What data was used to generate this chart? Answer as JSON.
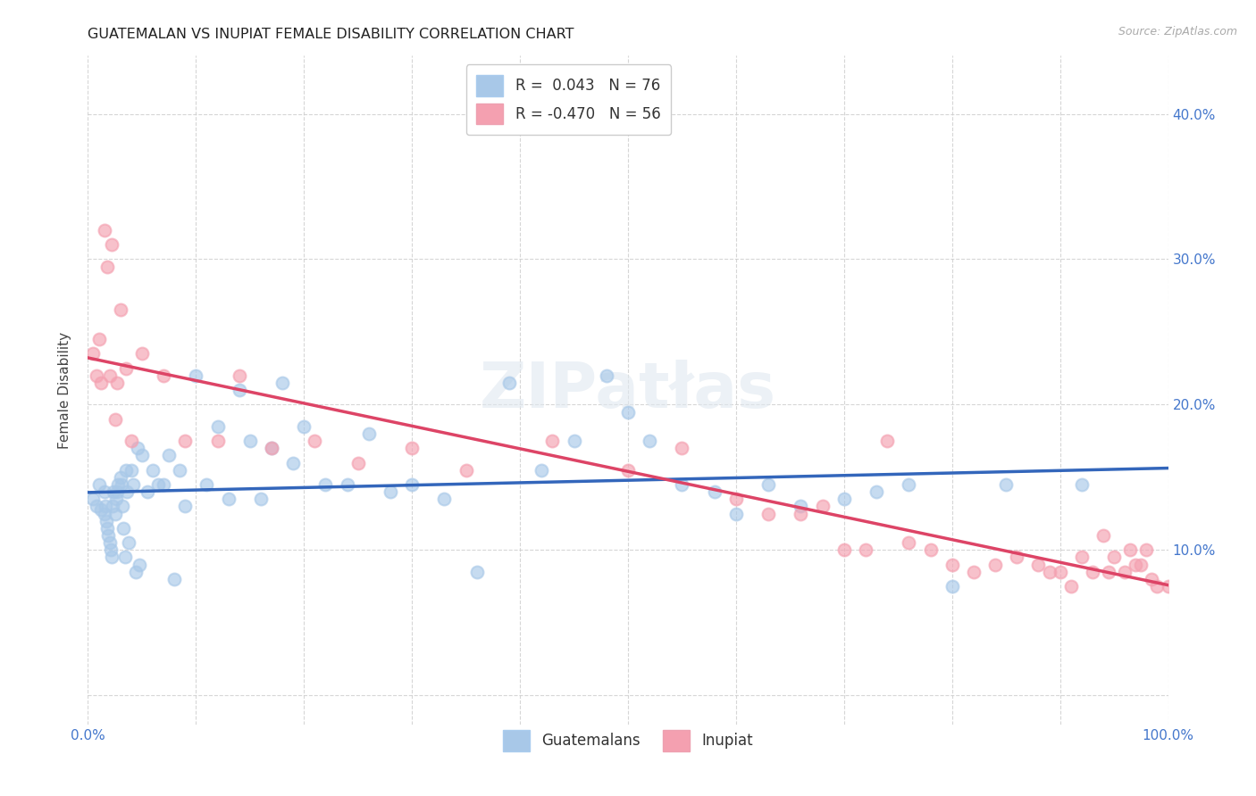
{
  "title": "GUATEMALAN VS INUPIAT FEMALE DISABILITY CORRELATION CHART",
  "source": "Source: ZipAtlas.com",
  "ylabel": "Female Disability",
  "xlim": [
    0.0,
    1.0
  ],
  "ylim": [
    -0.02,
    0.44
  ],
  "xticks": [
    0.0,
    0.1,
    0.2,
    0.3,
    0.4,
    0.5,
    0.6,
    0.7,
    0.8,
    0.9,
    1.0
  ],
  "xticklabels": [
    "0.0%",
    "",
    "",
    "",
    "",
    "",
    "",
    "",
    "",
    "",
    "100.0%"
  ],
  "yticks": [
    0.0,
    0.1,
    0.2,
    0.3,
    0.4
  ],
  "yticklabels_left": [
    "",
    "",
    "",
    "",
    ""
  ],
  "yticklabels_right": [
    "",
    "10.0%",
    "20.0%",
    "30.0%",
    "40.0%"
  ],
  "legend_r_guatemalan": "0.043",
  "legend_n_guatemalan": "76",
  "legend_r_inupiat": "-0.470",
  "legend_n_inupiat": "56",
  "guatemalan_color": "#a8c8e8",
  "inupiat_color": "#f4a0b0",
  "guatemalan_line_color": "#3366bb",
  "inupiat_line_color": "#dd4466",
  "scatter_alpha": 0.65,
  "marker_size": 100,
  "guatemalan_x": [
    0.005,
    0.008,
    0.01,
    0.012,
    0.015,
    0.015,
    0.016,
    0.017,
    0.018,
    0.019,
    0.02,
    0.021,
    0.022,
    0.023,
    0.024,
    0.025,
    0.026,
    0.027,
    0.028,
    0.03,
    0.031,
    0.032,
    0.033,
    0.034,
    0.035,
    0.036,
    0.038,
    0.04,
    0.042,
    0.044,
    0.046,
    0.048,
    0.05,
    0.055,
    0.06,
    0.065,
    0.07,
    0.075,
    0.08,
    0.085,
    0.09,
    0.1,
    0.11,
    0.12,
    0.13,
    0.14,
    0.15,
    0.16,
    0.17,
    0.18,
    0.19,
    0.2,
    0.22,
    0.24,
    0.26,
    0.28,
    0.3,
    0.33,
    0.36,
    0.39,
    0.42,
    0.45,
    0.48,
    0.5,
    0.52,
    0.55,
    0.58,
    0.6,
    0.63,
    0.66,
    0.7,
    0.73,
    0.76,
    0.8,
    0.85,
    0.92
  ],
  "guatemalan_y": [
    0.135,
    0.13,
    0.145,
    0.128,
    0.14,
    0.125,
    0.13,
    0.12,
    0.115,
    0.11,
    0.105,
    0.1,
    0.095,
    0.13,
    0.14,
    0.125,
    0.135,
    0.14,
    0.145,
    0.15,
    0.145,
    0.13,
    0.115,
    0.095,
    0.155,
    0.14,
    0.105,
    0.155,
    0.145,
    0.085,
    0.17,
    0.09,
    0.165,
    0.14,
    0.155,
    0.145,
    0.145,
    0.165,
    0.08,
    0.155,
    0.13,
    0.22,
    0.145,
    0.185,
    0.135,
    0.21,
    0.175,
    0.135,
    0.17,
    0.215,
    0.16,
    0.185,
    0.145,
    0.145,
    0.18,
    0.14,
    0.145,
    0.135,
    0.085,
    0.215,
    0.155,
    0.175,
    0.22,
    0.195,
    0.175,
    0.145,
    0.14,
    0.125,
    0.145,
    0.13,
    0.135,
    0.14,
    0.145,
    0.075,
    0.145,
    0.145
  ],
  "inupiat_x": [
    0.005,
    0.008,
    0.01,
    0.012,
    0.015,
    0.018,
    0.02,
    0.022,
    0.025,
    0.027,
    0.03,
    0.035,
    0.04,
    0.05,
    0.07,
    0.09,
    0.12,
    0.14,
    0.17,
    0.21,
    0.25,
    0.3,
    0.35,
    0.43,
    0.5,
    0.55,
    0.6,
    0.63,
    0.66,
    0.68,
    0.7,
    0.72,
    0.74,
    0.76,
    0.78,
    0.8,
    0.82,
    0.84,
    0.86,
    0.88,
    0.89,
    0.9,
    0.91,
    0.92,
    0.93,
    0.94,
    0.945,
    0.95,
    0.96,
    0.965,
    0.97,
    0.975,
    0.98,
    0.985,
    0.99,
    1.0
  ],
  "inupiat_y": [
    0.235,
    0.22,
    0.245,
    0.215,
    0.32,
    0.295,
    0.22,
    0.31,
    0.19,
    0.215,
    0.265,
    0.225,
    0.175,
    0.235,
    0.22,
    0.175,
    0.175,
    0.22,
    0.17,
    0.175,
    0.16,
    0.17,
    0.155,
    0.175,
    0.155,
    0.17,
    0.135,
    0.125,
    0.125,
    0.13,
    0.1,
    0.1,
    0.175,
    0.105,
    0.1,
    0.09,
    0.085,
    0.09,
    0.095,
    0.09,
    0.085,
    0.085,
    0.075,
    0.095,
    0.085,
    0.11,
    0.085,
    0.095,
    0.085,
    0.1,
    0.09,
    0.09,
    0.1,
    0.08,
    0.075,
    0.075
  ],
  "background_color": "#ffffff",
  "grid_color": "#cccccc",
  "tick_color": "#4477cc",
  "dashed_line_start_x": 0.62,
  "dashed_line_end_x": 1.0
}
